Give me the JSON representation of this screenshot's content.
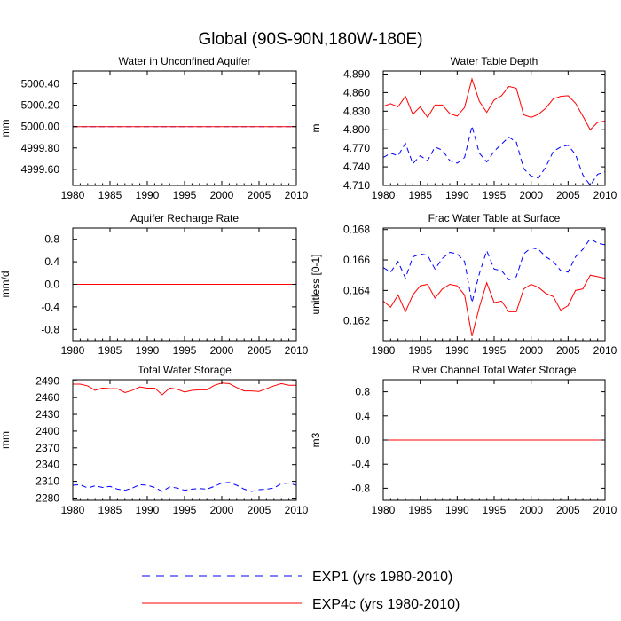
{
  "figure_title": "Global (90S-90N,180W-180E)",
  "legend": {
    "entries": [
      {
        "label": "EXP1 (yrs 1980-2010)",
        "color": "#0000ff",
        "dash": "dashed"
      },
      {
        "label": "EXP4c (yrs 1980-2010)",
        "color": "#ff0000",
        "dash": "solid"
      }
    ]
  },
  "chart_data": [
    {
      "type": "line",
      "title": "Water in Unconfined Aquifer",
      "ylabel": "mm",
      "xlim": [
        1980,
        2010
      ],
      "ylim": [
        4999.45,
        5000.52
      ],
      "xticks": [
        1980,
        1985,
        1990,
        1995,
        2000,
        2005,
        2010
      ],
      "yticks": [
        4999.6,
        4999.8,
        5000.0,
        5000.2,
        5000.4
      ],
      "ytick_labels": [
        "4999.60",
        "4999.80",
        "5000.00",
        "5000.20",
        "5000.40"
      ],
      "x": [
        1980,
        2010
      ],
      "series": [
        {
          "name": "EXP1 (yrs 1980-2010)",
          "color": "#0000ff",
          "dash": "dashed",
          "values": [
            5000.0,
            5000.0
          ]
        },
        {
          "name": "EXP4c (yrs 1980-2010)",
          "color": "#ff0000",
          "dash": "solid",
          "values": [
            5000.0,
            5000.0
          ]
        }
      ]
    },
    {
      "type": "line",
      "title": "Water Table Depth",
      "ylabel": "m",
      "xlim": [
        1980,
        2010
      ],
      "ylim": [
        4.71,
        4.895
      ],
      "xticks": [
        1980,
        1985,
        1990,
        1995,
        2000,
        2005,
        2010
      ],
      "yticks": [
        4.71,
        4.74,
        4.77,
        4.8,
        4.83,
        4.86,
        4.89
      ],
      "ytick_labels": [
        "4.710",
        "4.740",
        "4.770",
        "4.800",
        "4.830",
        "4.860",
        "4.890"
      ],
      "x": [
        1980,
        1981,
        1982,
        1983,
        1984,
        1985,
        1986,
        1987,
        1988,
        1989,
        1990,
        1991,
        1992,
        1993,
        1994,
        1995,
        1996,
        1997,
        1998,
        1999,
        2000,
        2001,
        2002,
        2003,
        2004,
        2005,
        2006,
        2007,
        2008,
        2009,
        2010
      ],
      "series": [
        {
          "name": "EXP1 (yrs 1980-2010)",
          "color": "#0000ff",
          "dash": "dashed",
          "values": [
            4.755,
            4.762,
            4.758,
            4.778,
            4.745,
            4.758,
            4.75,
            4.772,
            4.767,
            4.75,
            4.746,
            4.755,
            4.806,
            4.762,
            4.748,
            4.765,
            4.777,
            4.788,
            4.78,
            4.737,
            4.725,
            4.722,
            4.74,
            4.765,
            4.772,
            4.775,
            4.76,
            4.727,
            4.71,
            4.728,
            4.732
          ]
        },
        {
          "name": "EXP4c (yrs 1980-2010)",
          "color": "#ff0000",
          "dash": "solid",
          "values": [
            4.838,
            4.842,
            4.837,
            4.854,
            4.825,
            4.837,
            4.82,
            4.84,
            4.84,
            4.826,
            4.822,
            4.836,
            4.882,
            4.846,
            4.828,
            4.848,
            4.855,
            4.87,
            4.867,
            4.824,
            4.82,
            4.825,
            4.835,
            4.85,
            4.854,
            4.855,
            4.843,
            4.822,
            4.8,
            4.812,
            4.814
          ]
        }
      ]
    },
    {
      "type": "line",
      "title": "Aquifer Recharge Rate",
      "ylabel": "mm/d",
      "xlim": [
        1980,
        2010
      ],
      "ylim": [
        -1.0,
        1.0
      ],
      "xticks": [
        1980,
        1985,
        1990,
        1995,
        2000,
        2005,
        2010
      ],
      "yticks": [
        -0.8,
        -0.4,
        0.0,
        0.4,
        0.8
      ],
      "ytick_labels": [
        "-0.8",
        "-0.4",
        "0.0",
        "0.4",
        "0.8"
      ],
      "x": [
        1980,
        2010
      ],
      "series": [
        {
          "name": "EXP1 (yrs 1980-2010)",
          "color": "#0000ff",
          "dash": "dashed",
          "values": [
            0.0,
            0.0
          ]
        },
        {
          "name": "EXP4c (yrs 1980-2010)",
          "color": "#ff0000",
          "dash": "solid",
          "values": [
            0.0,
            0.0
          ]
        }
      ]
    },
    {
      "type": "line",
      "title": "Frac Water Table at Surface",
      "ylabel": "unitless [0-1]",
      "xlim": [
        1980,
        2010
      ],
      "ylim": [
        0.1607,
        0.1681
      ],
      "xticks": [
        1980,
        1985,
        1990,
        1995,
        2000,
        2005,
        2010
      ],
      "yticks": [
        0.162,
        0.164,
        0.166,
        0.168
      ],
      "ytick_labels": [
        "0.162",
        "0.164",
        "0.166",
        "0.168"
      ],
      "x": [
        1980,
        1981,
        1982,
        1983,
        1984,
        1985,
        1986,
        1987,
        1988,
        1989,
        1990,
        1991,
        1992,
        1993,
        1994,
        1995,
        1996,
        1997,
        1998,
        1999,
        2000,
        2001,
        2002,
        2003,
        2004,
        2005,
        2006,
        2007,
        2008,
        2009,
        2010
      ],
      "series": [
        {
          "name": "EXP1 (yrs 1980-2010)",
          "color": "#0000ff",
          "dash": "dashed",
          "values": [
            0.1655,
            0.1652,
            0.1659,
            0.1648,
            0.1662,
            0.1664,
            0.1663,
            0.1654,
            0.1661,
            0.1665,
            0.1664,
            0.1659,
            0.1632,
            0.1651,
            0.1666,
            0.1654,
            0.1653,
            0.1647,
            0.1649,
            0.1664,
            0.1668,
            0.1667,
            0.1662,
            0.1659,
            0.1653,
            0.1652,
            0.1662,
            0.1667,
            0.1674,
            0.1671,
            0.167
          ]
        },
        {
          "name": "EXP4c (yrs 1980-2010)",
          "color": "#ff0000",
          "dash": "solid",
          "values": [
            0.1633,
            0.1629,
            0.1637,
            0.1626,
            0.1637,
            0.1643,
            0.1644,
            0.1635,
            0.1641,
            0.1644,
            0.1643,
            0.1637,
            0.161,
            0.1629,
            0.1645,
            0.1632,
            0.1633,
            0.1626,
            0.1626,
            0.1641,
            0.1644,
            0.1642,
            0.1638,
            0.1636,
            0.1627,
            0.163,
            0.164,
            0.1641,
            0.165,
            0.1649,
            0.1648
          ]
        }
      ]
    },
    {
      "type": "line",
      "title": "Total Water Storage",
      "ylabel": "mm",
      "xlim": [
        1980,
        2010
      ],
      "ylim": [
        2276,
        2492
      ],
      "xticks": [
        1980,
        1985,
        1990,
        1995,
        2000,
        2005,
        2010
      ],
      "yticks": [
        2280,
        2310,
        2340,
        2370,
        2400,
        2430,
        2460,
        2490
      ],
      "ytick_labels": [
        "2280",
        "2310",
        "2340",
        "2370",
        "2400",
        "2430",
        "2460",
        "2490"
      ],
      "x": [
        1980,
        1981,
        1982,
        1983,
        1984,
        1985,
        1986,
        1987,
        1988,
        1989,
        1990,
        1991,
        1992,
        1993,
        1994,
        1995,
        1996,
        1997,
        1998,
        1999,
        2000,
        2001,
        2002,
        2003,
        2004,
        2005,
        2006,
        2007,
        2008,
        2009,
        2010
      ],
      "series": [
        {
          "name": "EXP1 (yrs 1980-2010)",
          "color": "#0000ff",
          "dash": "dashed",
          "values": [
            2303,
            2304,
            2298,
            2302,
            2299,
            2301,
            2296,
            2294,
            2298,
            2304,
            2303,
            2299,
            2292,
            2300,
            2298,
            2294,
            2296,
            2297,
            2296,
            2301,
            2307,
            2308,
            2303,
            2296,
            2292,
            2295,
            2296,
            2298,
            2306,
            2307,
            2303
          ]
        },
        {
          "name": "EXP4c (yrs 1980-2010)",
          "color": "#ff0000",
          "dash": "solid",
          "values": [
            2484,
            2484,
            2481,
            2473,
            2477,
            2476,
            2476,
            2469,
            2473,
            2479,
            2477,
            2477,
            2465,
            2477,
            2475,
            2470,
            2473,
            2474,
            2474,
            2482,
            2486,
            2485,
            2478,
            2472,
            2472,
            2471,
            2476,
            2481,
            2485,
            2482,
            2482
          ]
        }
      ]
    },
    {
      "type": "line",
      "title": "River Channel Total Water Storage",
      "ylabel": "m3",
      "xlim": [
        1980,
        2010
      ],
      "ylim": [
        -1.0,
        1.0
      ],
      "xticks": [
        1980,
        1985,
        1990,
        1995,
        2000,
        2005,
        2010
      ],
      "yticks": [
        -0.8,
        -0.4,
        0.0,
        0.4,
        0.8
      ],
      "ytick_labels": [
        "-0.8",
        "-0.4",
        "0.0",
        "0.4",
        "0.8"
      ],
      "x": [
        1980,
        2010
      ],
      "series": [
        {
          "name": "EXP1 (yrs 1980-2010)",
          "color": "#0000ff",
          "dash": "dashed",
          "values": [
            0.0,
            0.0
          ]
        },
        {
          "name": "EXP4c (yrs 1980-2010)",
          "color": "#ff0000",
          "dash": "solid",
          "values": [
            0.0,
            0.0
          ]
        }
      ]
    }
  ]
}
